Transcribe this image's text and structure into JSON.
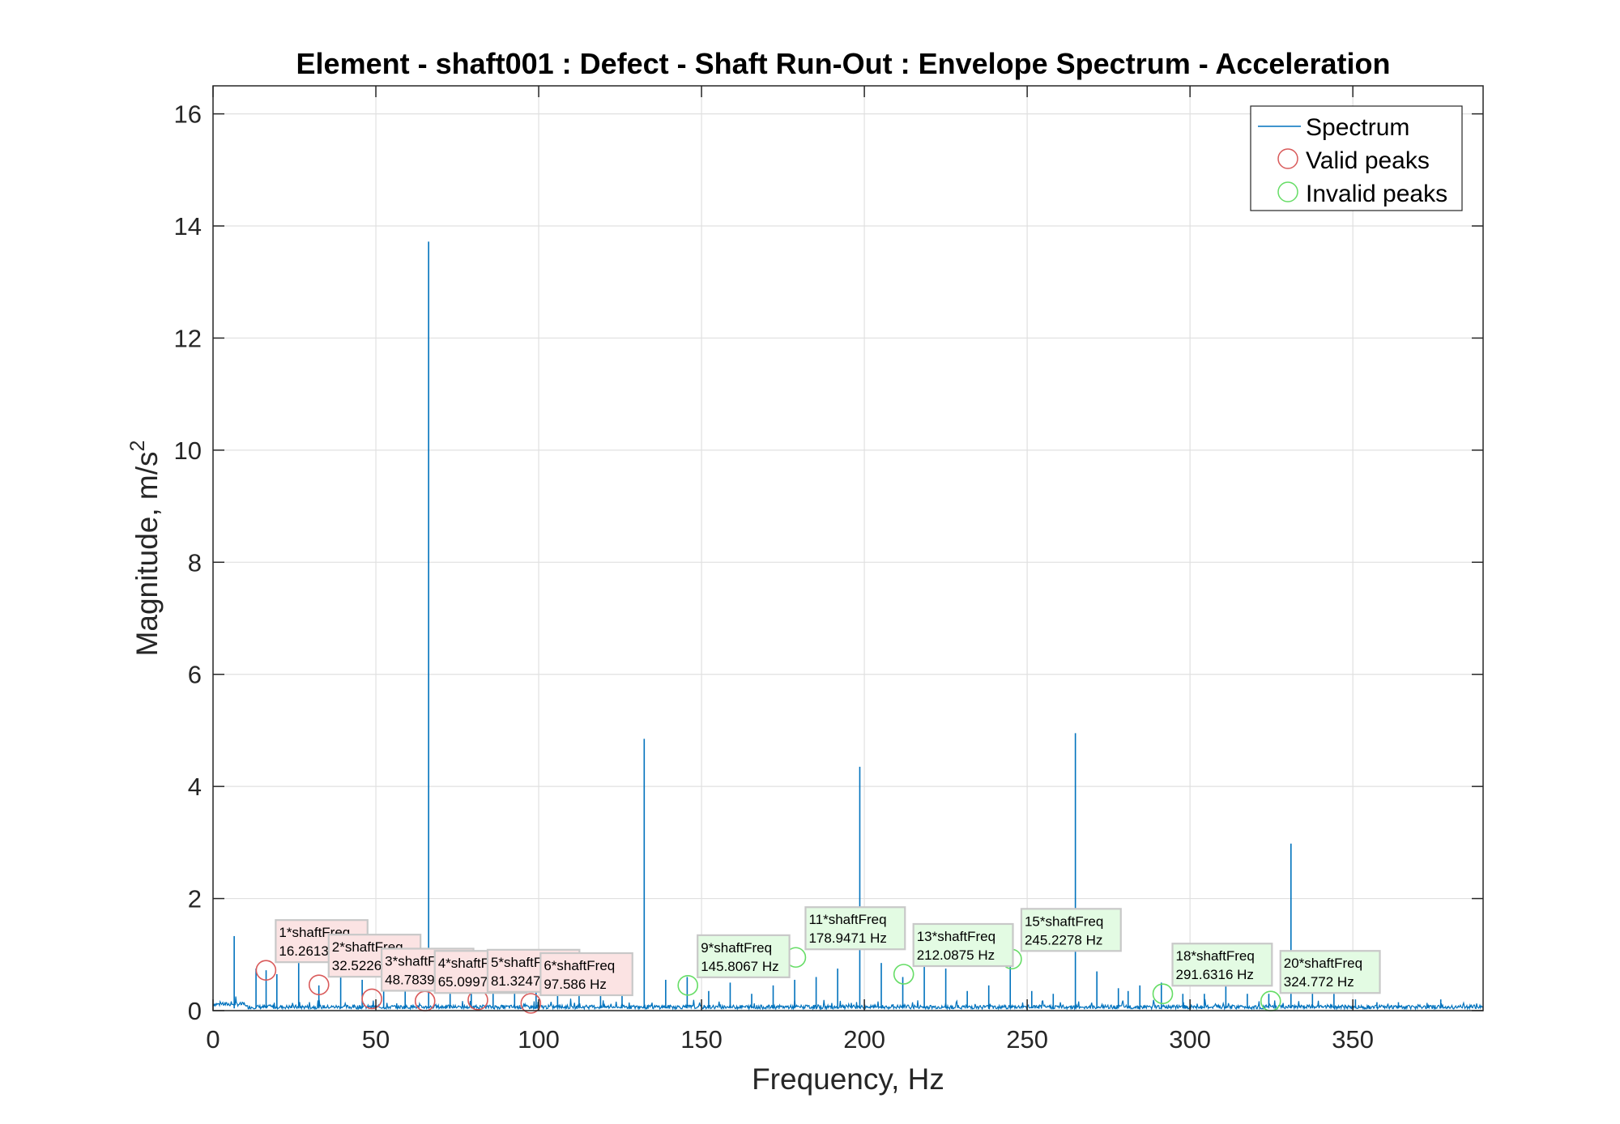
{
  "chart_data": {
    "type": "line",
    "title": "Element - shaft001 : Defect - Shaft Run-Out : Envelope Spectrum - Acceleration",
    "xlabel": "Frequency, Hz",
    "ylabel": "Magnitude, m/s",
    "ylabel_superscript": "2",
    "xlim": [
      0,
      390
    ],
    "ylim": [
      0,
      16.5
    ],
    "xticks": [
      0,
      50,
      100,
      150,
      200,
      250,
      300,
      350
    ],
    "yticks": [
      0,
      2,
      4,
      6,
      8,
      10,
      12,
      14,
      16
    ],
    "grid": true,
    "legend_position": "top-right",
    "legend": [
      "Spectrum",
      "Valid peaks",
      "Invalid peaks"
    ],
    "colors": {
      "spectrum": "#0072BD",
      "valid": "#D95A5A",
      "invalid": "#66DD66",
      "valid_box": "#FBE3E3",
      "invalid_box": "#E3FBE3",
      "grid": "#E0E0E0",
      "axis": "#262626"
    },
    "spectrum_peaks": [
      {
        "x": 6.5,
        "y": 1.33
      },
      {
        "x": 13.2,
        "y": 0.75
      },
      {
        "x": 16.3,
        "y": 0.72
      },
      {
        "x": 19.6,
        "y": 0.65
      },
      {
        "x": 26.3,
        "y": 0.85
      },
      {
        "x": 32.5,
        "y": 0.45
      },
      {
        "x": 39.2,
        "y": 0.6
      },
      {
        "x": 45.8,
        "y": 0.55
      },
      {
        "x": 52.4,
        "y": 0.5
      },
      {
        "x": 59.0,
        "y": 0.45
      },
      {
        "x": 66.2,
        "y": 13.72
      },
      {
        "x": 72.8,
        "y": 0.5
      },
      {
        "x": 79.3,
        "y": 0.4
      },
      {
        "x": 86.0,
        "y": 0.45
      },
      {
        "x": 92.6,
        "y": 0.35
      },
      {
        "x": 99.2,
        "y": 0.5
      },
      {
        "x": 105.8,
        "y": 0.35
      },
      {
        "x": 112.4,
        "y": 0.5
      },
      {
        "x": 119.0,
        "y": 0.4
      },
      {
        "x": 125.6,
        "y": 0.3
      },
      {
        "x": 132.4,
        "y": 4.85
      },
      {
        "x": 139.0,
        "y": 0.55
      },
      {
        "x": 145.6,
        "y": 0.6
      },
      {
        "x": 152.2,
        "y": 0.35
      },
      {
        "x": 158.8,
        "y": 0.5
      },
      {
        "x": 165.4,
        "y": 0.3
      },
      {
        "x": 172.0,
        "y": 0.45
      },
      {
        "x": 178.6,
        "y": 0.55
      },
      {
        "x": 185.2,
        "y": 0.6
      },
      {
        "x": 191.8,
        "y": 0.75
      },
      {
        "x": 198.6,
        "y": 4.35
      },
      {
        "x": 205.2,
        "y": 0.85
      },
      {
        "x": 211.8,
        "y": 0.6
      },
      {
        "x": 218.4,
        "y": 0.8
      },
      {
        "x": 225.0,
        "y": 0.75
      },
      {
        "x": 231.6,
        "y": 0.35
      },
      {
        "x": 238.2,
        "y": 0.45
      },
      {
        "x": 244.8,
        "y": 0.85
      },
      {
        "x": 251.4,
        "y": 0.35
      },
      {
        "x": 258.0,
        "y": 0.3
      },
      {
        "x": 264.8,
        "y": 4.95
      },
      {
        "x": 271.4,
        "y": 0.7
      },
      {
        "x": 278.0,
        "y": 0.4
      },
      {
        "x": 281.0,
        "y": 0.35
      },
      {
        "x": 284.6,
        "y": 0.45
      },
      {
        "x": 291.2,
        "y": 0.5
      },
      {
        "x": 297.8,
        "y": 0.3
      },
      {
        "x": 304.4,
        "y": 0.3
      },
      {
        "x": 311.0,
        "y": 0.45
      },
      {
        "x": 317.6,
        "y": 0.3
      },
      {
        "x": 324.2,
        "y": 0.3
      },
      {
        "x": 331.0,
        "y": 2.98
      },
      {
        "x": 337.6,
        "y": 0.35
      },
      {
        "x": 344.2,
        "y": 0.3
      },
      {
        "x": 350.8,
        "y": 0.2
      },
      {
        "x": 357.4,
        "y": 0.15
      },
      {
        "x": 364.0,
        "y": 0.15
      },
      {
        "x": 377.0,
        "y": 0.2
      }
    ],
    "valid_peaks": [
      {
        "x": 16.2613,
        "y": 0.72,
        "label1": "1*shaftFreq",
        "label2": "16.2613 Hz",
        "box_visible_chars": "16.261"
      },
      {
        "x": 32.5226,
        "y": 0.46,
        "label1": "2*shaftFreq",
        "label2": "32.5226 Hz",
        "box_visible_chars": "32.5226"
      },
      {
        "x": 48.7839,
        "y": 0.21,
        "label1": "3*shaftFreq",
        "label2": "48.7839 Hz",
        "box_visible_chars": "48.7839"
      },
      {
        "x": 65.0997,
        "y": 0.17,
        "label1": "4*shaftFreq",
        "label2": "65.0997 Hz",
        "box_visible_chars": "65.0997"
      },
      {
        "x": 81.3247,
        "y": 0.19,
        "label1": "5*shaftFreq",
        "label2": "81.3247 Hz",
        "box_visible_chars": "81.3247"
      },
      {
        "x": 97.586,
        "y": 0.13,
        "label1": "6*shaftFreq",
        "label2": "97.586 Hz",
        "box_visible_chars": "97.586 Hz"
      }
    ],
    "invalid_peaks": [
      {
        "x": 145.8067,
        "y": 0.45,
        "label1": "9*shaftFreq",
        "label2": "145.8067 Hz"
      },
      {
        "x": 178.9471,
        "y": 0.95,
        "label1": "11*shaftFreq",
        "label2": "178.9471 Hz"
      },
      {
        "x": 212.0875,
        "y": 0.65,
        "label1": "13*shaftFreq",
        "label2": "212.0875 Hz"
      },
      {
        "x": 245.2278,
        "y": 0.92,
        "label1": "15*shaftFreq",
        "label2": "245.2278 Hz"
      },
      {
        "x": 291.6316,
        "y": 0.3,
        "label1": "18*shaftFreq",
        "label2": "291.6316 Hz"
      },
      {
        "x": 324.772,
        "y": 0.17,
        "label1": "20*shaftFreq",
        "label2": "324.772 Hz"
      }
    ]
  }
}
